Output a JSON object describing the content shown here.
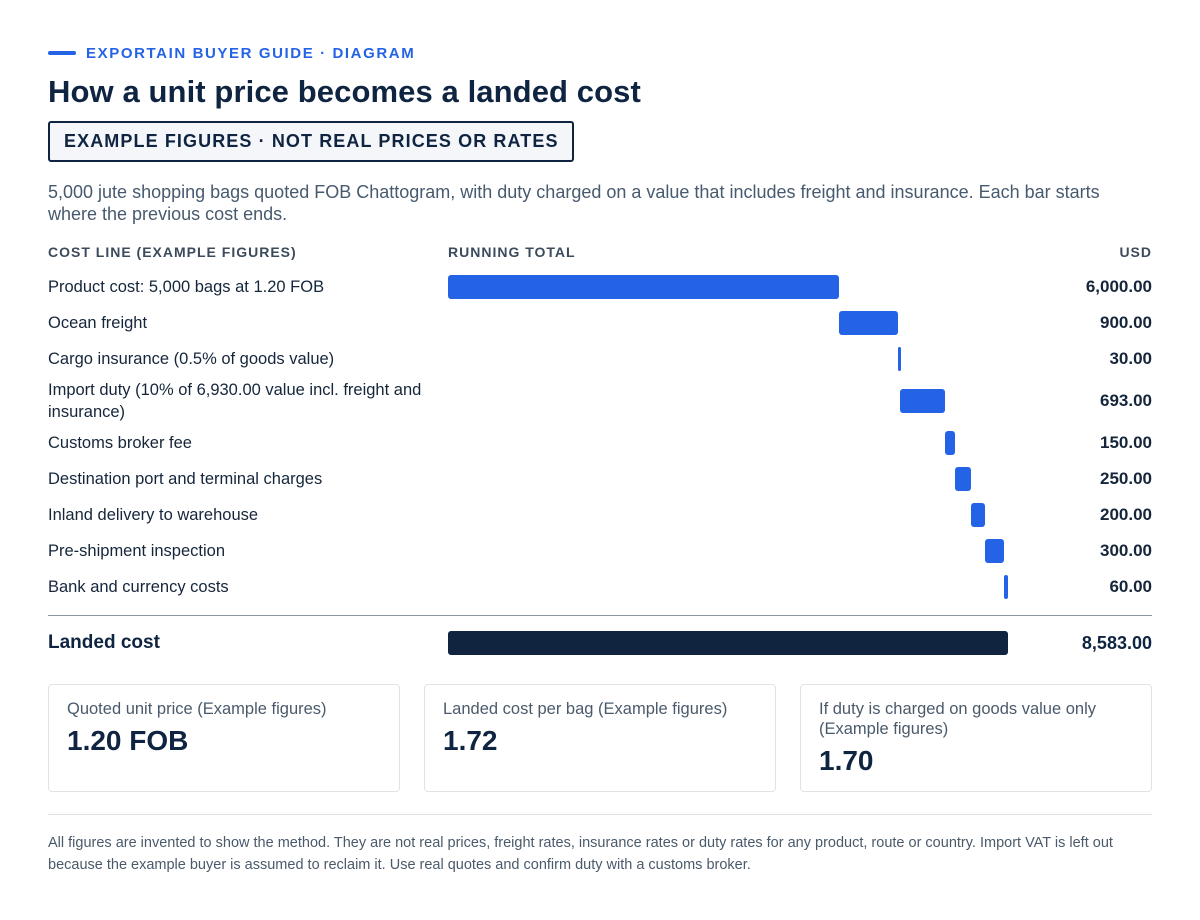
{
  "header": {
    "eyebrow": "EXPORTAIN BUYER GUIDE · DIAGRAM",
    "title": "How a unit price becomes a landed cost",
    "badge": "EXAMPLE FIGURES · NOT REAL PRICES OR RATES",
    "intro": "5,000 jute shopping bags quoted FOB Chattogram, with duty charged on a value that includes freight and insurance. Each bar starts where the previous cost ends."
  },
  "columns": {
    "cost_line": "COST LINE (EXAMPLE FIGURES)",
    "running_total": "RUNNING TOTAL",
    "currency": "USD"
  },
  "rows": [
    {
      "label": "Product cost: 5,000 bags at 1.20 FOB",
      "amount": 6000,
      "display": "6,000.00"
    },
    {
      "label": "Ocean freight",
      "amount": 900,
      "display": "900.00"
    },
    {
      "label": "Cargo insurance (0.5% of goods value)",
      "amount": 30,
      "display": "30.00"
    },
    {
      "label": "Import duty (10% of 6,930.00 value incl. freight and insurance)",
      "amount": 693,
      "display": "693.00"
    },
    {
      "label": "Customs broker fee",
      "amount": 150,
      "display": "150.00"
    },
    {
      "label": "Destination port and terminal charges",
      "amount": 250,
      "display": "250.00"
    },
    {
      "label": "Inland delivery to warehouse",
      "amount": 200,
      "display": "200.00"
    },
    {
      "label": "Pre-shipment inspection",
      "amount": 300,
      "display": "300.00"
    },
    {
      "label": "Bank and currency costs",
      "amount": 60,
      "display": "60.00"
    }
  ],
  "total": {
    "label": "Landed cost",
    "amount": 8583,
    "display": "8,583.00"
  },
  "cards": [
    {
      "label": "Quoted unit price (Example figures)",
      "value": "1.20 FOB"
    },
    {
      "label": "Landed cost per bag (Example figures)",
      "value": "1.72"
    },
    {
      "label": "If duty is charged on goods value only (Example figures)",
      "value": "1.70"
    }
  ],
  "footnote": "All figures are invented to show the method. They are not real prices, freight rates, insurance rates or duty rates for any product, route or country. Import VAT is left out because the example buyer is assumed to reclaim it. Use real quotes and confirm duty with a customs broker.",
  "colors": {
    "accent": "#2563e6",
    "total_bar": "#10243f",
    "text": "#0f2440"
  }
}
